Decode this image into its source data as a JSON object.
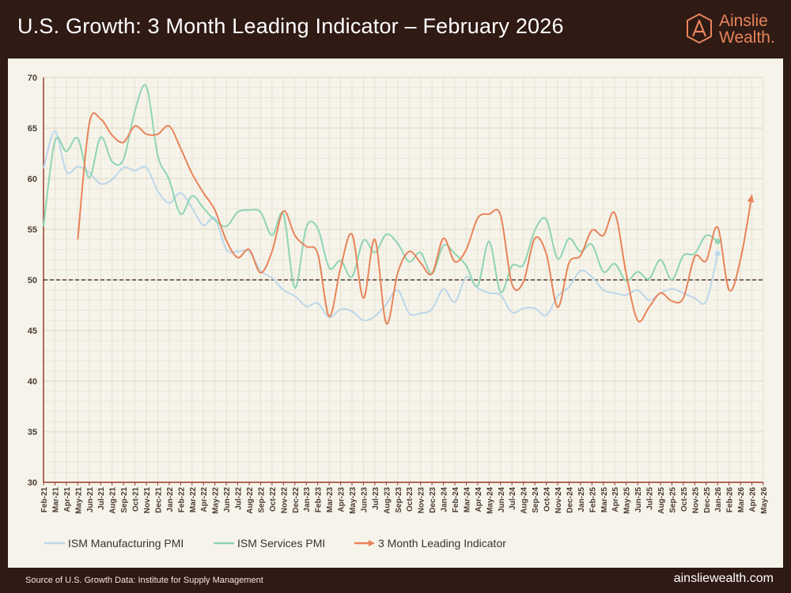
{
  "header": {
    "title": "U.S. Growth: 3 Month Leading Indicator – February 2026",
    "logo_line1": "Ainslie",
    "logo_line2": "Wealth."
  },
  "footer": {
    "source": "Source of U.S. Growth Data: Institute for Supply Management",
    "website": "ainsliewealth.com"
  },
  "colors": {
    "manufacturing": "#bcd6ea",
    "services": "#8fd4b4",
    "leading": "#e8845a",
    "threshold": "#5a3b2e"
  },
  "chart_data": {
    "type": "line",
    "title": "U.S. Growth: 3 Month Leading Indicator – February 2026",
    "xlabel": "",
    "ylabel": "",
    "ylim": [
      30,
      70
    ],
    "yticks": [
      30,
      35,
      40,
      45,
      50,
      55,
      60,
      65,
      70
    ],
    "grid": true,
    "legend_position": "bottom",
    "threshold": 50,
    "categories": [
      "Feb-21",
      "Mar-21",
      "Apr-21",
      "May-21",
      "Jun-21",
      "Jul-21",
      "Aug-21",
      "Sep-21",
      "Oct-21",
      "Nov-21",
      "Dec-21",
      "Jan-22",
      "Feb-22",
      "Mar-22",
      "Apr-22",
      "May-22",
      "Jun-22",
      "Jul-22",
      "Aug-22",
      "Sep-22",
      "Oct-22",
      "Nov-22",
      "Dec-22",
      "Jan-23",
      "Feb-23",
      "Mar-23",
      "Apr-23",
      "May-23",
      "Jun-23",
      "Jul-23",
      "Aug-23",
      "Sep-23",
      "Oct-23",
      "Nov-23",
      "Dec-23",
      "Jan-24",
      "Feb-24",
      "Mar-24",
      "Apr-24",
      "May-24",
      "Jun-24",
      "Jul-24",
      "Aug-24",
      "Sep-24",
      "Oct-24",
      "Nov-24",
      "Dec-24",
      "Jan-25",
      "Feb-25",
      "Mar-25",
      "Apr-25",
      "May-25",
      "Jun-25",
      "Jul-25",
      "Aug-25",
      "Sep-25",
      "Oct-25",
      "Nov-25",
      "Dec-25",
      "Jan-26",
      "Feb-26",
      "Mar-26",
      "Apr-26",
      "May-26"
    ],
    "series": [
      {
        "name": "ISM Manufacturing PMI",
        "color": "#bcd6ea",
        "values": [
          61.0,
          64.7,
          60.7,
          61.2,
          60.6,
          59.5,
          59.9,
          61.1,
          60.8,
          61.1,
          58.8,
          57.6,
          58.6,
          57.1,
          55.4,
          56.1,
          53.0,
          52.8,
          52.8,
          50.9,
          50.2,
          49.0,
          48.4,
          47.4,
          47.7,
          46.3,
          47.1,
          46.9,
          46.0,
          46.4,
          47.6,
          49.0,
          46.7,
          46.7,
          47.1,
          49.1,
          47.8,
          50.3,
          49.2,
          48.7,
          48.5,
          46.8,
          47.2,
          47.2,
          46.5,
          48.4,
          49.3,
          50.9,
          50.3,
          49.0,
          48.7,
          48.5,
          49.0,
          48.0,
          48.7,
          49.1,
          48.7,
          48.2,
          47.9,
          52.6,
          null,
          null,
          null,
          null
        ]
      },
      {
        "name": "ISM Services PMI",
        "color": "#8fd4b4",
        "values": [
          55.3,
          63.7,
          62.7,
          64.0,
          60.1,
          64.1,
          61.7,
          61.9,
          66.7,
          69.1,
          62.3,
          59.9,
          56.5,
          58.3,
          57.1,
          55.9,
          55.3,
          56.7,
          56.9,
          56.7,
          54.4,
          56.5,
          49.2,
          55.2,
          55.1,
          51.2,
          51.9,
          50.3,
          53.9,
          52.7,
          54.5,
          53.6,
          51.8,
          52.7,
          50.6,
          53.4,
          52.6,
          51.4,
          49.4,
          53.8,
          48.8,
          51.4,
          51.5,
          54.9,
          56.0,
          52.1,
          54.1,
          52.8,
          53.5,
          50.8,
          51.6,
          49.9,
          50.8,
          50.1,
          52.0,
          50.0,
          52.4,
          52.6,
          54.4,
          53.8,
          null,
          null,
          null,
          null
        ]
      },
      {
        "name": "3 Month Leading Indicator",
        "color": "#e8845a",
        "values": [
          null,
          null,
          null,
          54.0,
          65.4,
          65.9,
          64.3,
          63.6,
          65.2,
          64.4,
          64.4,
          65.2,
          63.0,
          60.5,
          58.6,
          56.9,
          53.9,
          52.2,
          53.0,
          50.7,
          52.8,
          56.8,
          54.4,
          53.3,
          52.6,
          46.4,
          51.2,
          54.5,
          48.2,
          54.0,
          45.7,
          50.7,
          52.8,
          51.7,
          50.6,
          54.1,
          51.8,
          53.0,
          56.1,
          56.5,
          56.4,
          49.6,
          49.8,
          54.1,
          52.6,
          47.3,
          51.7,
          52.4,
          54.9,
          54.4,
          56.6,
          50.6,
          46.0,
          47.3,
          48.7,
          47.9,
          48.2,
          52.3,
          51.9,
          55.2,
          49.0,
          52.0,
          58.4,
          null
        ]
      }
    ],
    "endpoint_markers": [
      {
        "series": "ISM Manufacturing PMI",
        "x": "Jan-26",
        "y": 52.6
      },
      {
        "series": "ISM Services PMI",
        "x": "Jan-26",
        "y": 53.8
      }
    ],
    "projection_arrow": {
      "series": "3 Month Leading Indicator",
      "x": "Apr-26",
      "y": 58.4
    }
  }
}
